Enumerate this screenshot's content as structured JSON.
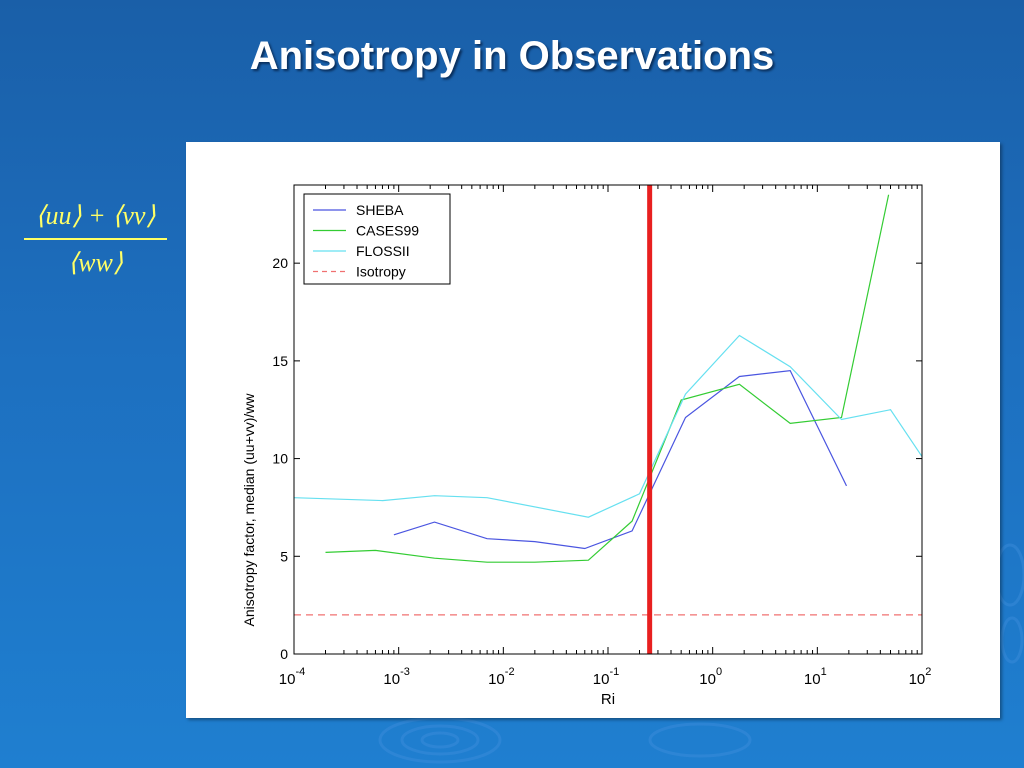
{
  "slide": {
    "title": "Anisotropy in Observations",
    "formula_numerator": "⟨uu⟩ + ⟨vv⟩",
    "formula_denominator": "⟨ww⟩"
  },
  "colors": {
    "background": "#1d6fbf",
    "title": "#ffffff",
    "formula": "#ffff66",
    "SHEBA": "#4a55e0",
    "CASES99": "#33cc33",
    "FLOSSII": "#66e0f0",
    "Isotropy": "#f07070",
    "marker": "#e82020"
  },
  "chart_data": {
    "type": "line",
    "xlabel": "Ri",
    "ylabel": "Anisotropy factor, median (uu+vv)/ww",
    "xscale": "log",
    "xlim": [
      0.0001,
      100
    ],
    "ylim": [
      0,
      24
    ],
    "x_ticks": [
      {
        "base": "10",
        "exp": "-4"
      },
      {
        "base": "10",
        "exp": "-3"
      },
      {
        "base": "10",
        "exp": "-2"
      },
      {
        "base": "10",
        "exp": "-1"
      },
      {
        "base": "10",
        "exp": "0"
      },
      {
        "base": "10",
        "exp": "1"
      },
      {
        "base": "10",
        "exp": "2"
      }
    ],
    "y_ticks": [
      "0",
      "5",
      "10",
      "15",
      "20"
    ],
    "legend_position": "top-left",
    "vertical_marker_x": 0.25,
    "series": [
      {
        "name": "SHEBA",
        "style": "solid",
        "x": [
          0.0009,
          0.0022,
          0.007,
          0.02,
          0.06,
          0.17,
          0.55,
          1.8,
          5.5,
          19
        ],
        "y": [
          6.1,
          6.75,
          5.9,
          5.75,
          5.4,
          6.3,
          12.1,
          14.2,
          14.5,
          8.6
        ]
      },
      {
        "name": "CASES99",
        "style": "solid",
        "x": [
          0.0002,
          0.0006,
          0.0022,
          0.007,
          0.02,
          0.065,
          0.17,
          0.5,
          1.8,
          5.5,
          17,
          48
        ],
        "y": [
          5.2,
          5.3,
          4.9,
          4.7,
          4.7,
          4.8,
          6.8,
          13.0,
          13.8,
          11.8,
          12.1,
          23.5
        ]
      },
      {
        "name": "FLOSSII",
        "style": "solid",
        "x": [
          0.0001,
          0.0007,
          0.0022,
          0.007,
          0.065,
          0.2,
          0.55,
          1.8,
          5.5,
          17,
          50,
          100
        ],
        "y": [
          8.0,
          7.85,
          8.1,
          8.0,
          7.0,
          8.2,
          13.3,
          16.3,
          14.7,
          12.0,
          12.5,
          10.1
        ]
      },
      {
        "name": "Isotropy",
        "style": "dashed",
        "x": [
          0.0001,
          100
        ],
        "y": [
          2,
          2
        ]
      }
    ]
  }
}
